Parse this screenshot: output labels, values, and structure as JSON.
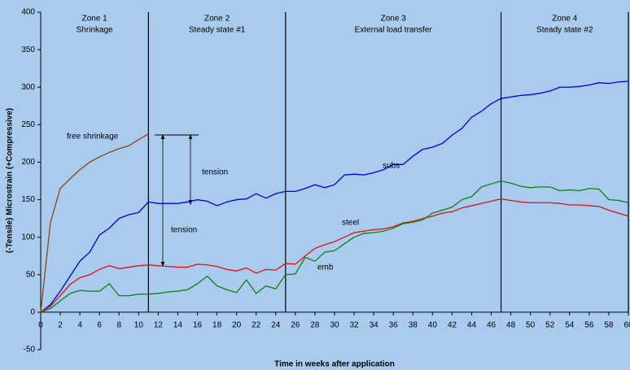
{
  "chart_data": {
    "type": "line",
    "xlabel": "Time in weeks after application",
    "ylabel": "(-Tensile) Microstrain (+Compressive)",
    "x": [
      0,
      1,
      2,
      3,
      4,
      5,
      6,
      7,
      8,
      9,
      10,
      11,
      12,
      13,
      14,
      15,
      16,
      17,
      18,
      19,
      20,
      21,
      22,
      23,
      24,
      25,
      26,
      27,
      28,
      29,
      30,
      31,
      32,
      33,
      34,
      35,
      36,
      37,
      38,
      39,
      40,
      41,
      42,
      43,
      44,
      45,
      46,
      47,
      48,
      49,
      50,
      51,
      52,
      53,
      54,
      55,
      56,
      57,
      58,
      59,
      60
    ],
    "xlim": [
      0,
      60
    ],
    "xticks": [
      0,
      2,
      4,
      6,
      8,
      10,
      12,
      14,
      16,
      18,
      20,
      22,
      24,
      26,
      28,
      30,
      32,
      34,
      36,
      38,
      40,
      42,
      44,
      46,
      48,
      50,
      52,
      54,
      56,
      58,
      60
    ],
    "ylim": [
      -50,
      400
    ],
    "yticks": [
      -50,
      0,
      50,
      100,
      150,
      200,
      250,
      300,
      350,
      400
    ],
    "series": [
      {
        "name": "free shrinkage",
        "color": "#8b4513",
        "values": [
          0,
          120,
          165,
          178,
          190,
          200,
          207,
          213,
          218,
          222,
          230,
          238,
          null,
          null,
          null,
          null,
          null,
          null,
          null,
          null,
          null,
          null,
          null,
          null,
          null,
          null,
          null,
          null,
          null,
          null,
          null,
          null,
          null,
          null,
          null,
          null,
          null,
          null,
          null,
          null,
          null,
          null,
          null,
          null,
          null,
          null,
          null,
          null,
          null,
          null,
          null,
          null,
          null,
          null,
          null,
          null,
          null,
          null,
          null,
          null,
          null
        ]
      },
      {
        "name": "subs",
        "color": "#0000e0",
        "values": [
          0,
          10,
          28,
          48,
          68,
          80,
          103,
          112,
          125,
          130,
          133,
          147,
          145,
          145,
          145,
          147,
          150,
          148,
          142,
          147,
          150,
          151,
          158,
          152,
          158,
          161,
          161,
          165,
          170,
          166,
          170,
          183,
          184,
          183,
          186,
          190,
          197,
          197,
          208,
          217,
          220,
          225,
          236,
          245,
          260,
          268,
          278,
          285,
          287,
          289,
          290,
          292,
          295,
          300,
          300,
          301,
          303,
          306,
          305,
          307,
          308
        ]
      },
      {
        "name": "steel",
        "color": "#e01010",
        "values": [
          0,
          8,
          22,
          37,
          46,
          50,
          57,
          62,
          58,
          60,
          62,
          63,
          62,
          61,
          60,
          60,
          64,
          63,
          61,
          57,
          55,
          59,
          52,
          57,
          56,
          65,
          64,
          75,
          85,
          90,
          94,
          100,
          106,
          108,
          110,
          111,
          114,
          119,
          121,
          125,
          128,
          132,
          134,
          139,
          142,
          145,
          148,
          151,
          149,
          147,
          146,
          146,
          146,
          145,
          143,
          143,
          142,
          141,
          136,
          132,
          128
        ]
      },
      {
        "name": "emb",
        "color": "#108010",
        "values": [
          0,
          5,
          15,
          25,
          29,
          28,
          28,
          38,
          22,
          22,
          24,
          24,
          25,
          27,
          28,
          30,
          38,
          48,
          35,
          30,
          26,
          43,
          25,
          35,
          31,
          50,
          51,
          73,
          68,
          80,
          82,
          91,
          100,
          105,
          106,
          108,
          112,
          118,
          120,
          123,
          132,
          136,
          140,
          150,
          154,
          167,
          171,
          175,
          172,
          168,
          166,
          167,
          167,
          162,
          163,
          162,
          165,
          164,
          150,
          149,
          146
        ]
      }
    ],
    "zone_boundaries": [
      11,
      25,
      47,
      60
    ],
    "zones": [
      {
        "name": "Zone 1",
        "subtitle": "Shrinkage"
      },
      {
        "name": "Zone 2",
        "subtitle": "Steady state #1"
      },
      {
        "name": "Zone 3",
        "subtitle": "External load transfer"
      },
      {
        "name": "Zone 4",
        "subtitle": "Steady state #2"
      }
    ],
    "annotations": [
      "tension",
      "tension"
    ]
  }
}
